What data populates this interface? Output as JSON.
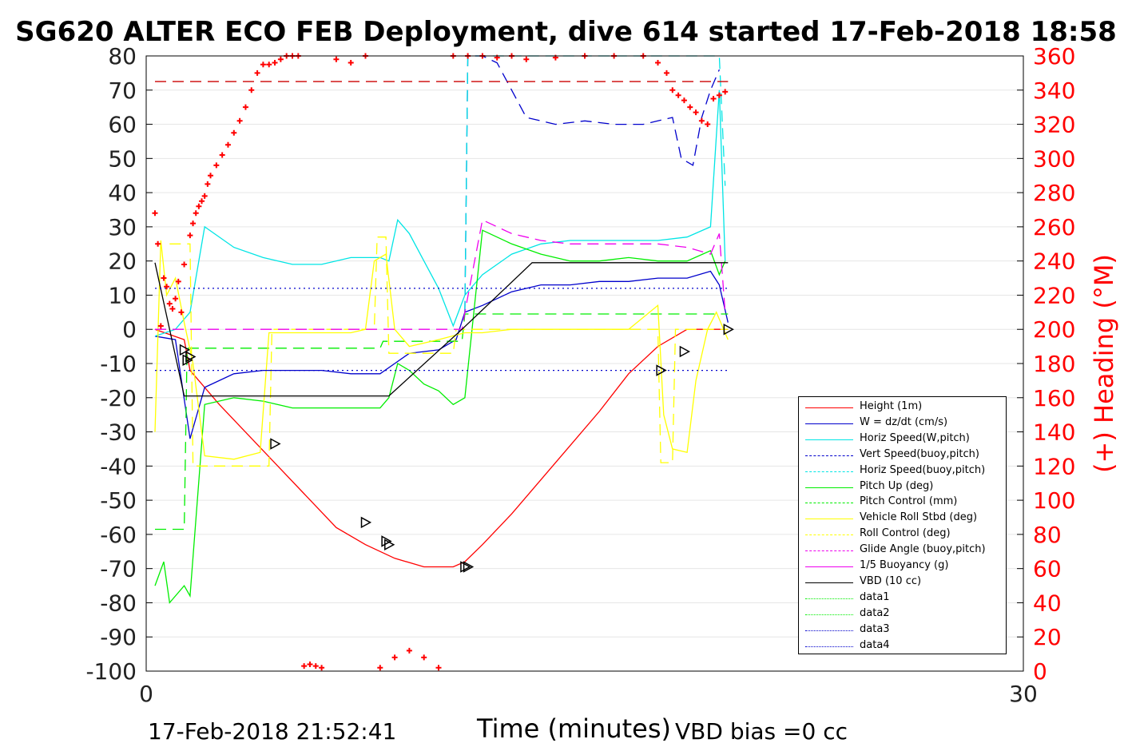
{
  "header": {
    "title": "SG620 ALTER ECO FEB Deployment, dive 614 started 17-Feb-2018 18:58"
  },
  "footer": {
    "timestamp": "17-Feb-2018 21:52:41",
    "vbd_bias": "VBD bias =0 cc"
  },
  "chart_data": {
    "type": "line",
    "title": "SG620 ALTER ECO FEB Deployment, dive 614 started 17-Feb-2018 18:58",
    "xlabel": "Time (minutes)",
    "ylabel": "",
    "ylabel_right": "(+) Heading (°M)",
    "xlim": [
      0,
      30
    ],
    "ylim": [
      -100,
      80
    ],
    "ylim_right": [
      0,
      360
    ],
    "x_ticks": [
      "0",
      "30"
    ],
    "y_ticks": [
      "80",
      "70",
      "60",
      "50",
      "40",
      "30",
      "20",
      "10",
      "0",
      "-10",
      "-20",
      "-30",
      "-40",
      "-50",
      "-60",
      "-70",
      "-80",
      "-90",
      "-100"
    ],
    "y_ticks_right": [
      "360",
      "340",
      "320",
      "300",
      "280",
      "260",
      "240",
      "220",
      "200",
      "180",
      "160",
      "140",
      "120",
      "100",
      "80",
      "60",
      "40",
      "20",
      "0"
    ],
    "grid": true,
    "legend_position": "bottom-right",
    "series": [
      {
        "name": "Height (1m)",
        "color": "#ff0000",
        "style": "solid",
        "x": [
          0.3,
          1.3,
          1.5,
          2.5,
          3.5,
          4.5,
          5.5,
          6.5,
          7.5,
          8.5,
          9.5,
          10.5,
          10.9,
          11.5,
          12.5,
          13.5,
          14.5,
          15.5,
          16.5,
          17.5,
          18.5,
          19.5,
          19.9
        ],
        "y": [
          0,
          -3,
          -12,
          -22,
          -31,
          -40,
          -49,
          -58,
          -63,
          -67,
          -69.5,
          -69.5,
          -68,
          -63,
          -54,
          -44,
          -34,
          -24,
          -13,
          -5,
          0,
          0,
          0
        ]
      },
      {
        "name": "W = dz/dt (cm/s)",
        "color": "#0000cc",
        "style": "solid",
        "x": [
          0.3,
          1.0,
          1.5,
          2.0,
          3.0,
          4.0,
          5.0,
          6.0,
          7.0,
          8.0,
          8.5,
          9.0,
          10.0,
          10.6,
          10.9,
          11.5,
          12.5,
          13.5,
          14.5,
          15.5,
          16.5,
          17.5,
          18.5,
          19.3,
          19.6,
          19.9
        ],
        "y": [
          -2,
          -3,
          -32,
          -17,
          -13,
          -12,
          -12,
          -12,
          -13,
          -13,
          -10,
          -7,
          -6,
          -3,
          5,
          7,
          11,
          13,
          13,
          14,
          14,
          15,
          15,
          17,
          13,
          2
        ]
      },
      {
        "name": "Horiz Speed(W,pitch)",
        "color": "#00e5e5",
        "style": "solid",
        "x": [
          0.3,
          1.0,
          1.5,
          2.0,
          3.0,
          4.0,
          5.0,
          6.0,
          7.0,
          8.0,
          8.3,
          8.6,
          9.0,
          9.5,
          10.0,
          10.5,
          10.9,
          11.5,
          12.5,
          13.5,
          14.5,
          15.5,
          16.5,
          17.5,
          18.5,
          19.3,
          19.6,
          19.8
        ],
        "y": [
          -2,
          0,
          5,
          30,
          24,
          21,
          19,
          19,
          21,
          21,
          20,
          32,
          28,
          20,
          12,
          1,
          10,
          16,
          22,
          25,
          26,
          26,
          26,
          26,
          27,
          30,
          70,
          20
        ]
      },
      {
        "name": "Vert Speed(buoy,pitch)",
        "color": "#0000cc",
        "style": "dashed",
        "x": [
          10.9,
          11.0,
          11.5,
          12.0,
          12.5,
          13.0,
          14.0,
          15.0,
          16.0,
          17.0,
          17.5,
          18.0,
          18.3,
          18.7,
          19.0,
          19.3,
          19.6
        ],
        "y": [
          5,
          80,
          80,
          78,
          70,
          62,
          60,
          61,
          60,
          60,
          61,
          62,
          50,
          48,
          62,
          70,
          76
        ]
      },
      {
        "name": "Horiz Speed(buoy,pitch)",
        "color": "#00e5e5",
        "style": "dashed",
        "x": [
          10.9,
          11.0,
          11.1,
          19.6,
          19.8
        ],
        "y": [
          5,
          80,
          80,
          80,
          42
        ]
      },
      {
        "name": "Pitch Up (deg)",
        "color": "#00ee00",
        "style": "solid",
        "x": [
          0.3,
          0.6,
          0.8,
          1.3,
          1.5,
          2.0,
          3.0,
          4.0,
          5.0,
          6.0,
          7.0,
          8.0,
          8.3,
          8.6,
          9.0,
          9.5,
          10.0,
          10.5,
          10.9,
          11.5,
          12.5,
          13.5,
          14.5,
          15.5,
          16.5,
          17.5,
          18.5,
          19.3,
          19.6,
          19.8
        ],
        "y": [
          -75,
          -68,
          -80,
          -75,
          -78,
          -22,
          -20,
          -21,
          -23,
          -23,
          -23,
          -23,
          -20,
          -10,
          -12,
          -16,
          -18,
          -22,
          -20,
          29,
          25,
          22,
          20,
          20,
          21,
          20,
          20,
          23,
          16,
          20
        ]
      },
      {
        "name": "Pitch Control (mm)",
        "color": "#00ee00",
        "style": "dashed",
        "x": [
          0.3,
          1.3,
          1.4,
          8.0,
          8.1,
          10.8,
          10.9,
          19.9
        ],
        "y": [
          -58.5,
          -58.5,
          -5.5,
          -5.5,
          -3.5,
          -3.5,
          4.5,
          4.5
        ]
      },
      {
        "name": "Vehicle Roll Stbd (deg)",
        "color": "#ffff00",
        "style": "solid",
        "x": [
          0.3,
          0.5,
          0.7,
          1.0,
          1.3,
          1.6,
          2.0,
          3.0,
          3.9,
          4.2,
          5.0,
          6.0,
          7.0,
          7.5,
          7.8,
          8.2,
          8.5,
          9.0,
          10.0,
          10.9,
          11.5,
          12.5,
          13.5,
          14.5,
          15.5,
          16.5,
          17.5,
          17.7,
          18.0,
          18.5,
          18.8,
          19.2,
          19.5,
          19.9
        ],
        "y": [
          -30,
          26,
          10,
          15,
          2,
          -10,
          -37,
          -38,
          -36,
          -1,
          -1,
          -1,
          -1,
          0,
          20,
          22,
          0,
          -5,
          -3,
          -1,
          -1,
          0,
          0,
          0,
          0,
          0,
          7,
          -25,
          -35,
          -36,
          -15,
          0,
          5,
          -3
        ]
      },
      {
        "name": "Roll Control (deg)",
        "color": "#ffff00",
        "style": "dashed",
        "x": [
          0.8,
          1.5,
          1.6,
          4.2,
          4.3,
          7.8,
          7.9,
          8.2,
          8.3,
          10.5,
          10.6,
          17.5,
          17.6,
          18.0,
          18.1,
          19.9
        ],
        "y": [
          25,
          25,
          -40,
          -40,
          0,
          0,
          27,
          27,
          -7,
          -7,
          0,
          0,
          -39,
          -39,
          0,
          0
        ]
      },
      {
        "name": "Glide Angle (buoy,pitch)",
        "color": "#ee00ee",
        "style": "dashed",
        "x": [
          0.3,
          10.8,
          10.9,
          11.5,
          12.5,
          13.5,
          14.5,
          15.5,
          16.5,
          17.5,
          18.5,
          19.3,
          19.6,
          19.8
        ],
        "y": [
          0,
          0,
          5,
          32,
          28,
          26,
          25,
          25,
          25,
          25,
          24,
          22,
          28,
          5
        ]
      },
      {
        "name": "1/5 Buoyancy (g)",
        "color": "#ee00ee",
        "style": "solid",
        "x": [
          0.3,
          0.4
        ],
        "y": [
          0,
          0
        ]
      },
      {
        "name": "VBD (10 cc)",
        "color": "#000000",
        "style": "solid",
        "x": [
          0.3,
          1.3,
          1.4,
          4.5,
          8.3,
          10.8,
          13.2,
          16.0,
          19.9
        ],
        "y": [
          19.5,
          -19.5,
          -19.5,
          -19.5,
          -19.5,
          0,
          19.5,
          19.5,
          19.5
        ]
      },
      {
        "name": "data1",
        "color": "#00ee00",
        "style": "dotted",
        "x": [],
        "y": []
      },
      {
        "name": "data2",
        "color": "#00ee00",
        "style": "dotted",
        "x": [],
        "y": []
      },
      {
        "name": "data3",
        "color": "#0000cc",
        "style": "dotted",
        "x": [
          0.3,
          19.9
        ],
        "y": [
          12,
          12
        ]
      },
      {
        "name": "data4",
        "color": "#0000cc",
        "style": "dotted",
        "x": [
          0.3,
          19.9
        ],
        "y": [
          -12,
          -12
        ]
      }
    ],
    "heading_reference": {
      "color": "#cc0000",
      "style": "dashed",
      "value": 345
    },
    "heading_points": {
      "color": "#ff0000",
      "axis": "right",
      "x": [
        0.3,
        0.4,
        0.5,
        0.6,
        0.7,
        0.8,
        0.9,
        1.0,
        1.1,
        1.2,
        1.3,
        1.5,
        1.6,
        1.7,
        1.8,
        1.9,
        2.0,
        2.1,
        2.2,
        2.4,
        2.6,
        2.8,
        3.0,
        3.2,
        3.4,
        3.6,
        3.8,
        4.0,
        4.2,
        4.4,
        4.6,
        4.8,
        5.0,
        5.2,
        5.4,
        5.6,
        5.8,
        6.0,
        6.5,
        7.0,
        7.5,
        8.0,
        8.5,
        9.0,
        9.5,
        10.0,
        10.5,
        11.0,
        11.5,
        12.0,
        12.5,
        13.0,
        14.0,
        15.0,
        16.0,
        17.0,
        17.5,
        17.8,
        18.0,
        18.2,
        18.4,
        18.6,
        18.8,
        19.0,
        19.2,
        19.4,
        19.6,
        19.8
      ],
      "y": [
        268,
        250,
        202,
        230,
        225,
        215,
        212,
        218,
        228,
        210,
        238,
        255,
        262,
        268,
        272,
        275,
        278,
        285,
        290,
        296,
        302,
        308,
        315,
        322,
        330,
        340,
        350,
        355,
        355,
        356,
        358,
        360,
        360,
        360,
        3,
        4,
        3,
        2,
        358,
        356,
        360,
        2,
        8,
        12,
        8,
        2,
        360,
        360,
        360,
        359,
        360,
        358,
        359,
        360,
        360,
        360,
        356,
        350,
        340,
        337,
        334,
        330,
        327,
        322,
        320,
        335,
        337,
        339
      ]
    },
    "event_markers": {
      "symbol": "triangle-open",
      "x": [
        1.3,
        1.4,
        1.5,
        4.4,
        7.5,
        8.2,
        8.3,
        10.9,
        11.0,
        17.6,
        18.4,
        19.9
      ],
      "y": [
        -6,
        -9,
        -8,
        -33.5,
        -56.5,
        -62,
        -63,
        -69.5,
        -69.5,
        -12,
        -6.5,
        0
      ]
    }
  },
  "colors": {
    "heading_axis": "#ff0000",
    "axes": "#000000",
    "grid": "#e6e6e6"
  }
}
